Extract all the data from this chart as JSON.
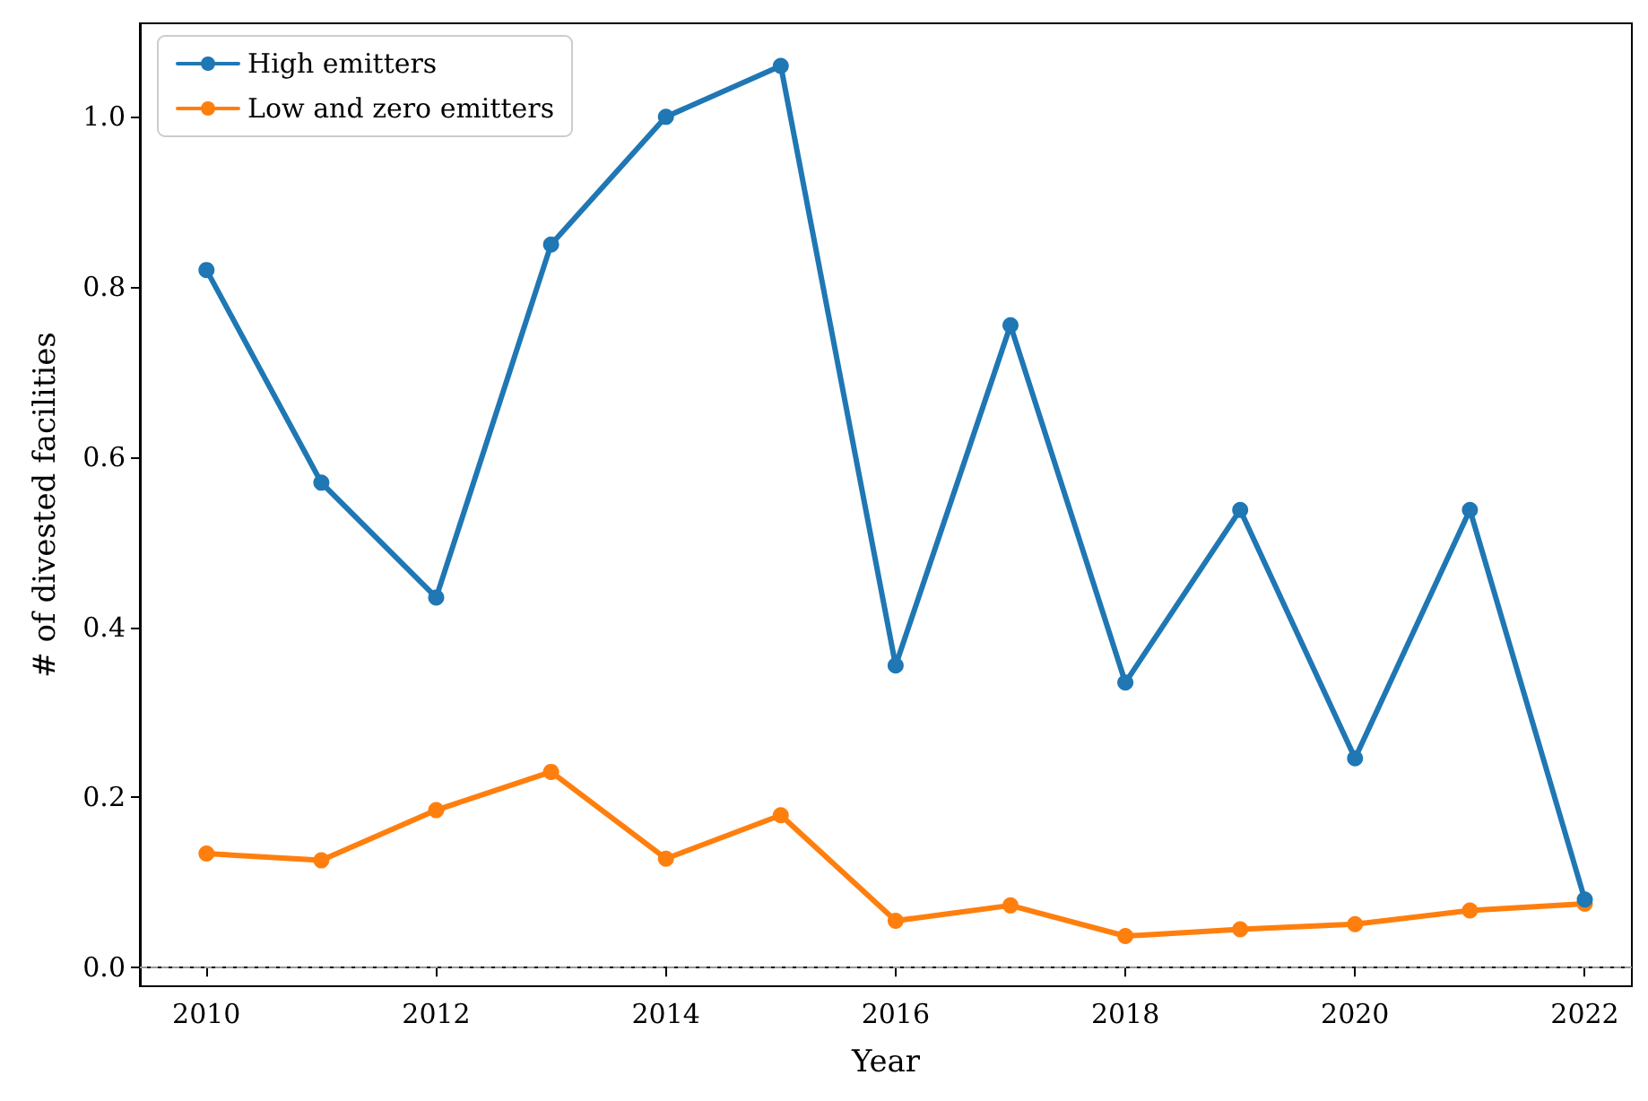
{
  "chart_data": {
    "type": "line",
    "xlabel": "Year",
    "ylabel": "# of divested facilities",
    "x": [
      2010,
      2011,
      2012,
      2013,
      2014,
      2015,
      2016,
      2017,
      2018,
      2019,
      2020,
      2021,
      2022
    ],
    "series": [
      {
        "name": "High emitters",
        "color": "#1f77b4",
        "values": [
          0.82,
          0.57,
          0.435,
          0.85,
          1.0,
          1.06,
          0.355,
          0.755,
          0.335,
          0.538,
          0.246,
          0.538,
          0.08
        ]
      },
      {
        "name": "Low and zero emitters",
        "color": "#ff7f0e",
        "values": [
          0.134,
          0.126,
          0.185,
          0.23,
          0.128,
          0.179,
          0.055,
          0.073,
          0.037,
          0.045,
          0.051,
          0.067,
          0.075
        ]
      }
    ],
    "xlim": [
      2009.42,
      2022.41
    ],
    "ylim": [
      -0.022,
      1.11
    ],
    "xticks": [
      2010,
      2012,
      2014,
      2016,
      2018,
      2020,
      2022
    ],
    "yticks": [
      {
        "value": 0,
        "label": "0.0"
      },
      {
        "value": 0.2,
        "label": "0.2"
      },
      {
        "value": 0.4,
        "label": "0.4"
      },
      {
        "value": 0.6,
        "label": "0.6"
      },
      {
        "value": 0.8,
        "label": "0.8"
      },
      {
        "value": 1.0,
        "label": "1.0"
      }
    ],
    "ref_lines": [
      {
        "axis": "y",
        "value": 0,
        "color": "#999999",
        "line_style": "dashed"
      }
    ],
    "legend": "top left",
    "marker": "circle",
    "line_style": "solid",
    "grid": false
  }
}
